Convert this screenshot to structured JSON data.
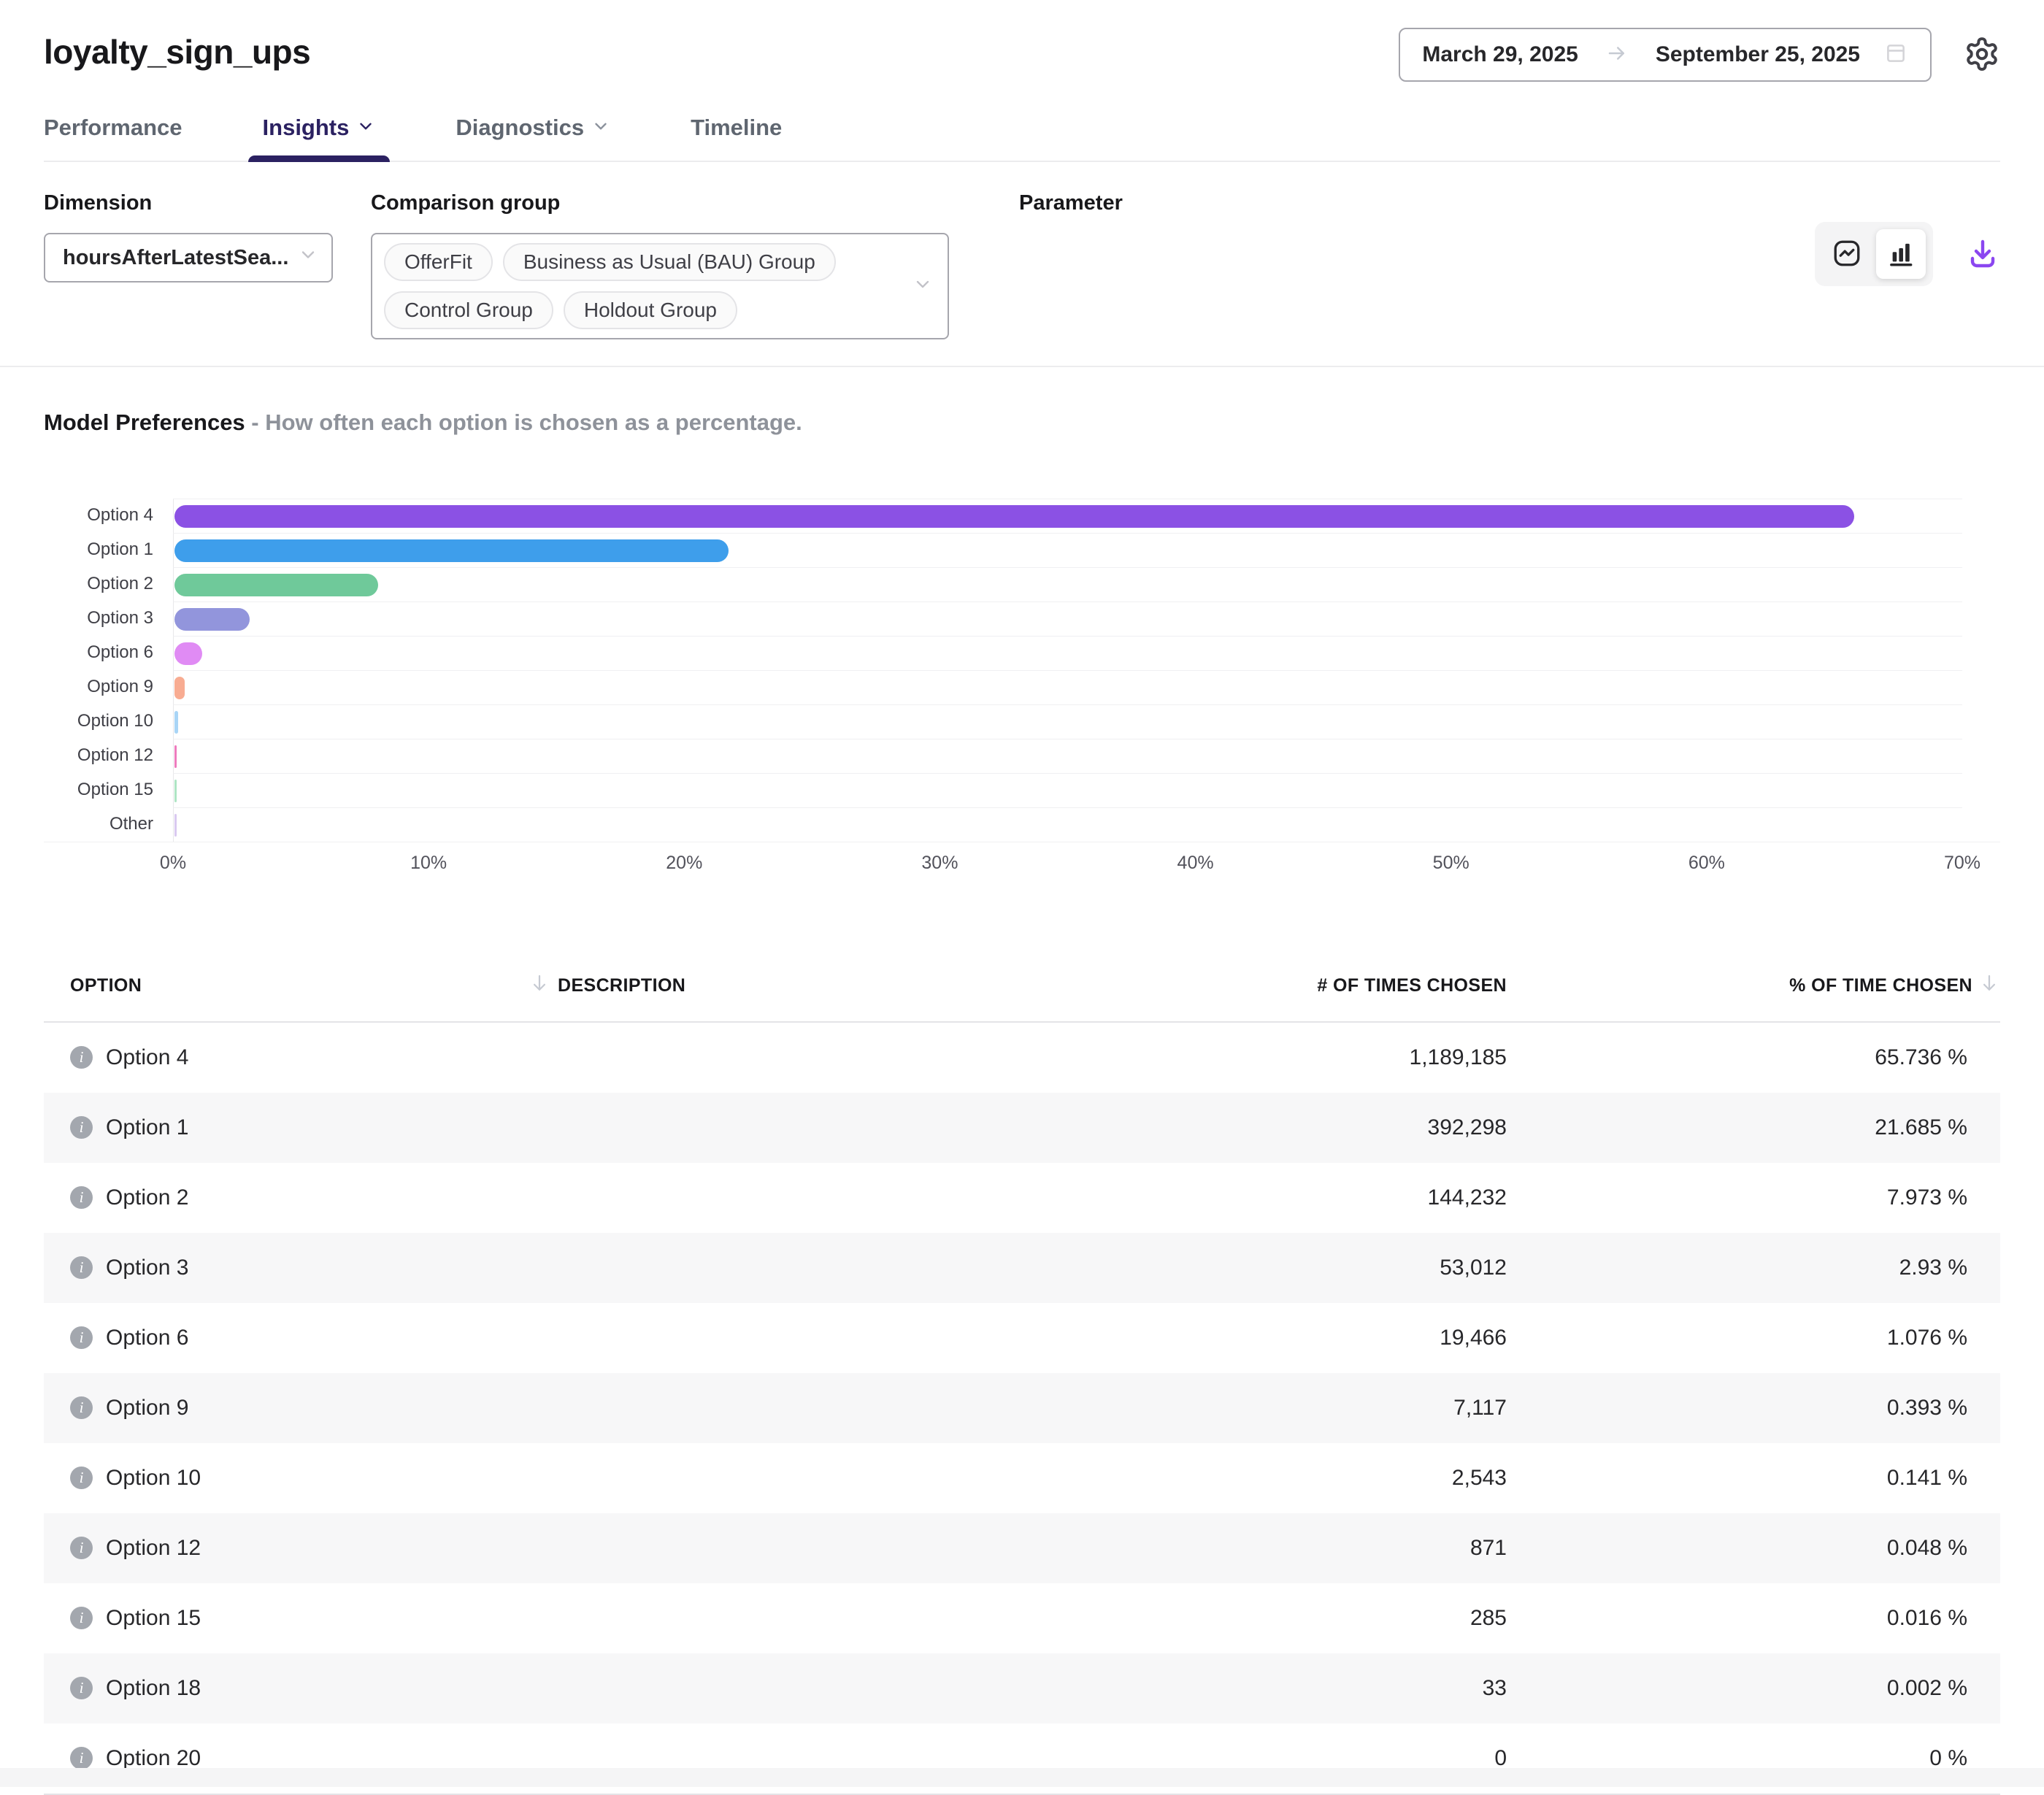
{
  "header": {
    "title": "loyalty_sign_ups",
    "date_range": {
      "start": "March 29, 2025",
      "end": "September 25, 2025"
    }
  },
  "tabs": [
    {
      "label": "Performance",
      "active": false,
      "chevron": false
    },
    {
      "label": "Insights",
      "active": true,
      "chevron": true
    },
    {
      "label": "Diagnostics",
      "active": false,
      "chevron": true
    },
    {
      "label": "Timeline",
      "active": false,
      "chevron": false
    }
  ],
  "filters": {
    "dimension": {
      "label": "Dimension",
      "value": "hoursAfterLatestSea..."
    },
    "comparison_group": {
      "label": "Comparison group",
      "values": [
        "OfferFit",
        "Business as Usual (BAU) Group",
        "Control Group",
        "Holdout Group"
      ]
    },
    "parameter": {
      "label": "Parameter"
    }
  },
  "toolbar": {
    "chart_type_options": [
      "line-chart",
      "bar-chart"
    ],
    "selected_chart_type": "bar-chart"
  },
  "section": {
    "title": "Model Preferences",
    "subtitle": "- How often each option is chosen as a percentage."
  },
  "chart_data": {
    "type": "bar",
    "orientation": "horizontal",
    "title": "Model Preferences",
    "categories": [
      "Option 4",
      "Option 1",
      "Option 2",
      "Option 3",
      "Option 6",
      "Option 9",
      "Option 10",
      "Option 12",
      "Option 15",
      "Other"
    ],
    "values": [
      65.736,
      21.685,
      7.973,
      2.93,
      1.076,
      0.393,
      0.141,
      0.048,
      0.016,
      0.002
    ],
    "unit": "%",
    "colors": [
      "#8B51E4",
      "#3E9EEB",
      "#6FC99A",
      "#9295DC",
      "#E08BF4",
      "#F8AC92",
      "#A9D5F6",
      "#EE7CBE",
      "#AEE5C4",
      "#D9C9F0"
    ],
    "x_ticks": [
      "0%",
      "10%",
      "20%",
      "30%",
      "40%",
      "50%",
      "60%",
      "70%"
    ],
    "xlim": [
      0,
      70
    ],
    "grid": "horizontal-row-separators",
    "legend": "none"
  },
  "table": {
    "columns": [
      {
        "label": "OPTION",
        "sortable": true
      },
      {
        "label": "DESCRIPTION",
        "sortable": false
      },
      {
        "label": "# OF TIMES CHOSEN",
        "sortable": false
      },
      {
        "label": "% OF TIME CHOSEN",
        "sortable": true
      }
    ],
    "rows": [
      {
        "option": "Option 4",
        "description": "",
        "times_chosen": "1,189,185",
        "pct_chosen": "65.736 %"
      },
      {
        "option": "Option 1",
        "description": "",
        "times_chosen": "392,298",
        "pct_chosen": "21.685 %"
      },
      {
        "option": "Option 2",
        "description": "",
        "times_chosen": "144,232",
        "pct_chosen": "7.973 %"
      },
      {
        "option": "Option 3",
        "description": "",
        "times_chosen": "53,012",
        "pct_chosen": "2.93 %"
      },
      {
        "option": "Option 6",
        "description": "",
        "times_chosen": "19,466",
        "pct_chosen": "1.076 %"
      },
      {
        "option": "Option 9",
        "description": "",
        "times_chosen": "7,117",
        "pct_chosen": "0.393 %"
      },
      {
        "option": "Option 10",
        "description": "",
        "times_chosen": "2,543",
        "pct_chosen": "0.141 %"
      },
      {
        "option": "Option 12",
        "description": "",
        "times_chosen": "871",
        "pct_chosen": "0.048 %"
      },
      {
        "option": "Option 15",
        "description": "",
        "times_chosen": "285",
        "pct_chosen": "0.016 %"
      },
      {
        "option": "Option 18",
        "description": "",
        "times_chosen": "33",
        "pct_chosen": "0.002 %"
      },
      {
        "option": "Option 20",
        "description": "",
        "times_chosen": "0",
        "pct_chosen": "0 %"
      }
    ]
  },
  "colors": {
    "accent_tab": "#2b2161",
    "download_icon": "#8b46f0",
    "row_alt_bg": "#f7f7f8"
  }
}
